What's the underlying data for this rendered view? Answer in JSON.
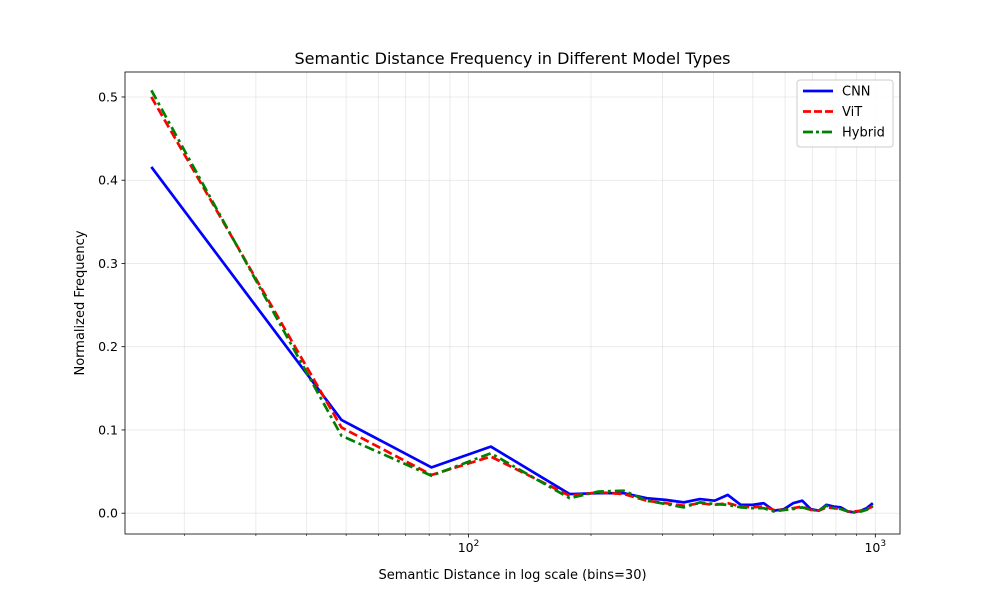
{
  "chart_data": {
    "type": "line",
    "title": "Semantic Distance Frequency in Different Model Types",
    "xlabel": "Semantic Distance in log scale (bins=30)",
    "ylabel": "Normalized Frequency",
    "xscale": "log",
    "xlim": [
      14.3,
      1150
    ],
    "ylim": [
      -0.025,
      0.53
    ],
    "xticks": [
      {
        "value": 100,
        "base": "10",
        "exp": "2"
      },
      {
        "value": 1000,
        "base": "10",
        "exp": "3"
      }
    ],
    "yticks": [
      {
        "value": 0.0,
        "label": "0.0"
      },
      {
        "value": 0.1,
        "label": "0.1"
      },
      {
        "value": 0.2,
        "label": "0.2"
      },
      {
        "value": 0.3,
        "label": "0.3"
      },
      {
        "value": 0.4,
        "label": "0.4"
      },
      {
        "value": 0.5,
        "label": "0.5"
      }
    ],
    "grid": true,
    "legend_position": "top-right",
    "x": [
      16.6,
      48.7,
      81.1,
      113.4,
      177.2,
      208.3,
      241.0,
      274.3,
      305.0,
      338.2,
      370.5,
      402.6,
      433.9,
      466.5,
      498.8,
      531.6,
      563.4,
      597.1,
      627.7,
      661.3,
      693.4,
      726.4,
      758.2,
      790.7,
      822.5,
      857.0,
      887.6,
      920.9,
      951.7,
      986.1
    ],
    "series": [
      {
        "name": "CNN",
        "color": "#0000ff",
        "dash": "solid",
        "values": [
          0.416,
          0.112,
          0.055,
          0.08,
          0.023,
          0.024,
          0.024,
          0.018,
          0.016,
          0.013,
          0.017,
          0.015,
          0.022,
          0.01,
          0.01,
          0.012,
          0.003,
          0.005,
          0.012,
          0.015,
          0.005,
          0.003,
          0.01,
          0.008,
          0.007,
          0.002,
          0.001,
          0.003,
          0.006,
          0.012
        ]
      },
      {
        "name": "ViT",
        "color": "#ff0000",
        "dash": "dashed",
        "values": [
          0.5,
          0.103,
          0.046,
          0.068,
          0.021,
          0.025,
          0.023,
          0.015,
          0.012,
          0.009,
          0.012,
          0.01,
          0.012,
          0.008,
          0.007,
          0.008,
          0.004,
          0.004,
          0.006,
          0.008,
          0.004,
          0.003,
          0.007,
          0.006,
          0.005,
          0.002,
          0.002,
          0.003,
          0.005,
          0.008
        ]
      },
      {
        "name": "Hybrid",
        "color": "#008000",
        "dash": "dashdot",
        "values": [
          0.508,
          0.093,
          0.045,
          0.072,
          0.018,
          0.026,
          0.027,
          0.015,
          0.011,
          0.007,
          0.013,
          0.011,
          0.01,
          0.007,
          0.006,
          0.006,
          0.002,
          0.004,
          0.005,
          0.007,
          0.004,
          0.003,
          0.009,
          0.006,
          0.005,
          0.002,
          0.001,
          0.002,
          0.004,
          0.009
        ]
      }
    ]
  }
}
